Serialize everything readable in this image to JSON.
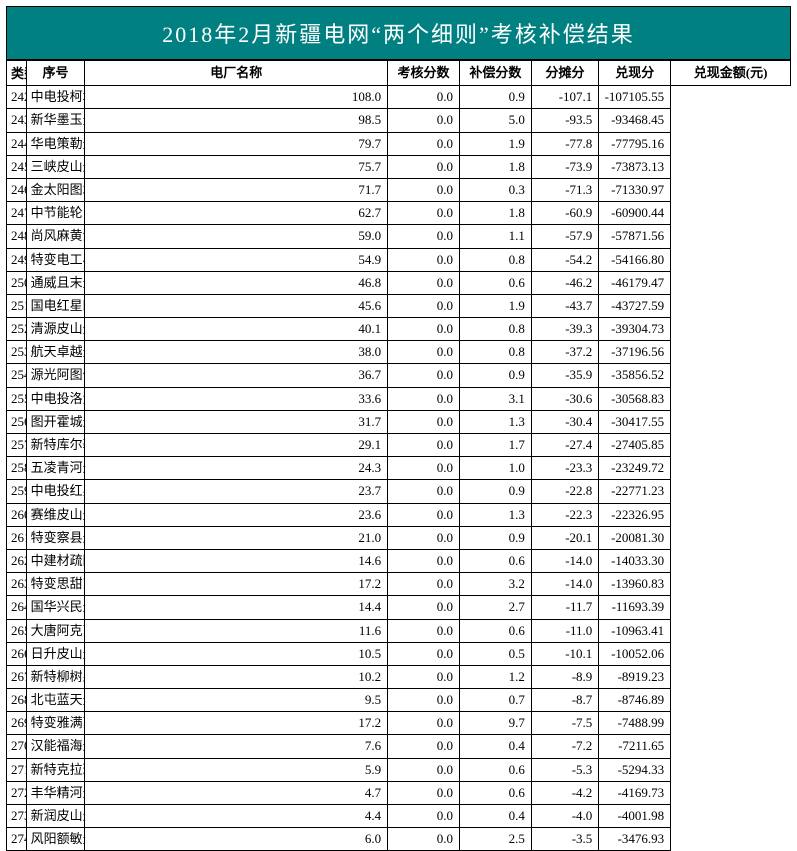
{
  "title": "2018年2月新疆电网“两个细则”考核补偿结果",
  "type_label": "类型",
  "columns": {
    "seq": "序号",
    "name": "电厂名称",
    "kaohe": "考核分数",
    "buchang": "补偿分数",
    "fentan": "分摊分",
    "duixian": "兑现分",
    "amount": "兑现金额(元)"
  },
  "rows": [
    {
      "seq": "242",
      "name": "中电投柯坪光伏三电站",
      "k": "108.0",
      "b": "0.0",
      "f": "0.9",
      "d": "-107.1",
      "a": "-107105.55"
    },
    {
      "seq": "243",
      "name": "新华墨玉光伏二电站",
      "k": "98.5",
      "b": "0.0",
      "f": "5.0",
      "d": "-93.5",
      "a": "-93468.45"
    },
    {
      "seq": "244",
      "name": "华电策勒光伏电站",
      "k": "79.7",
      "b": "0.0",
      "f": "1.9",
      "d": "-77.8",
      "a": "-77795.16"
    },
    {
      "seq": "245",
      "name": "三峡皮山光伏电站",
      "k": "75.7",
      "b": "0.0",
      "f": "1.8",
      "d": "-73.9",
      "a": "-73873.13"
    },
    {
      "seq": "246",
      "name": "金太阳图木舒克光伏一电站",
      "k": "71.7",
      "b": "0.0",
      "f": "0.3",
      "d": "-71.3",
      "a": "-71330.97"
    },
    {
      "seq": "247",
      "name": "中节能轮台光伏一电站",
      "k": "62.7",
      "b": "0.0",
      "f": "1.8",
      "d": "-60.9",
      "a": "-60900.44"
    },
    {
      "seq": "248",
      "name": "尚风麻黄沟西光伏一电站",
      "k": "59.0",
      "b": "0.0",
      "f": "1.1",
      "d": "-57.9",
      "a": "-57871.56"
    },
    {
      "seq": "249",
      "name": "特变电工小草湖光伏二电站",
      "k": "54.9",
      "b": "0.0",
      "f": "0.8",
      "d": "-54.2",
      "a": "-54166.80"
    },
    {
      "seq": "250",
      "name": "通威且末光伏一电站",
      "k": "46.8",
      "b": "0.0",
      "f": "0.6",
      "d": "-46.2",
      "a": "-46179.47"
    },
    {
      "seq": "251",
      "name": "国电红星四场光伏一电站",
      "k": "45.6",
      "b": "0.0",
      "f": "1.9",
      "d": "-43.7",
      "a": "-43727.59"
    },
    {
      "seq": "252",
      "name": "清源皮山光伏一电站",
      "k": "40.1",
      "b": "0.0",
      "f": "0.8",
      "d": "-39.3",
      "a": "-39304.73"
    },
    {
      "seq": "253",
      "name": "航天卓越光伏一电站",
      "k": "38.0",
      "b": "0.0",
      "f": "0.8",
      "d": "-37.2",
      "a": "-37196.56"
    },
    {
      "seq": "254",
      "name": "源光阿图什光伏一电站",
      "k": "36.7",
      "b": "0.0",
      "f": "0.9",
      "d": "-35.9",
      "a": "-35856.52"
    },
    {
      "seq": "255",
      "name": "中电投洛浦光伏一电站",
      "k": "33.6",
      "b": "0.0",
      "f": "3.1",
      "d": "-30.6",
      "a": "-30568.83"
    },
    {
      "seq": "256",
      "name": "图开霍城光伏一电站",
      "k": "31.7",
      "b": "0.0",
      "f": "1.3",
      "d": "-30.4",
      "a": "-30417.55"
    },
    {
      "seq": "257",
      "name": "新特库尔勒光伏一电站",
      "k": "29.1",
      "b": "0.0",
      "f": "1.7",
      "d": "-27.4",
      "a": "-27405.85"
    },
    {
      "seq": "258",
      "name": "五凌青河光伏一电站",
      "k": "24.3",
      "b": "0.0",
      "f": "1.0",
      "d": "-23.3",
      "a": "-23249.72"
    },
    {
      "seq": "259",
      "name": "中电投红星二场光伏一电站",
      "k": "23.7",
      "b": "0.0",
      "f": "0.9",
      "d": "-22.8",
      "a": "-22771.23"
    },
    {
      "seq": "260",
      "name": "赛维皮山光伏一电站",
      "k": "23.6",
      "b": "0.0",
      "f": "1.3",
      "d": "-22.3",
      "a": "-22326.95"
    },
    {
      "seq": "261",
      "name": "特变察县光伏一电站",
      "k": "21.0",
      "b": "0.0",
      "f": "0.9",
      "d": "-20.1",
      "a": "-20081.30"
    },
    {
      "seq": "262",
      "name": "中建材疏附光伏一电站",
      "k": "14.6",
      "b": "0.0",
      "f": "0.6",
      "d": "-14.0",
      "a": "-14033.30"
    },
    {
      "seq": "263",
      "name": "特变思甜东光伏一电站",
      "k": "17.2",
      "b": "0.0",
      "f": "3.2",
      "d": "-14.0",
      "a": "-13960.83"
    },
    {
      "seq": "264",
      "name": "国华兴民光伏一电站",
      "k": "14.4",
      "b": "0.0",
      "f": "2.7",
      "d": "-11.7",
      "a": "-11693.39"
    },
    {
      "seq": "265",
      "name": "大唐阿克苏光伏一电站",
      "k": "11.6",
      "b": "0.0",
      "f": "0.6",
      "d": "-11.0",
      "a": "-10963.41"
    },
    {
      "seq": "266",
      "name": "日升皮山光伏一电站",
      "k": "10.5",
      "b": "0.0",
      "f": "0.5",
      "d": "-10.1",
      "a": "-10052.06"
    },
    {
      "seq": "267",
      "name": "新特柳树泉光伏一电站",
      "k": "10.2",
      "b": "0.0",
      "f": "1.2",
      "d": "-8.9",
      "a": "-8919.23"
    },
    {
      "seq": "268",
      "name": "北屯蓝天光伏一期",
      "k": "9.5",
      "b": "0.0",
      "f": "0.7",
      "d": "-8.7",
      "a": "-8746.89"
    },
    {
      "seq": "269",
      "name": "特变雅满苏光伏一电站",
      "k": "17.2",
      "b": "0.0",
      "f": "9.7",
      "d": "-7.5",
      "a": "-7488.99"
    },
    {
      "seq": "270",
      "name": "汉能福海光伏一电站",
      "k": "7.6",
      "b": "0.0",
      "f": "0.4",
      "d": "-7.2",
      "a": "-7211.65"
    },
    {
      "seq": "271",
      "name": "新特克拉玛依光伏一电站",
      "k": "5.9",
      "b": "0.0",
      "f": "0.6",
      "d": "-5.3",
      "a": "-5294.33"
    },
    {
      "seq": "272",
      "name": "丰华精河光伏一电站",
      "k": "4.7",
      "b": "0.0",
      "f": "0.6",
      "d": "-4.2",
      "a": "-4169.73"
    },
    {
      "seq": "273",
      "name": "新润皮山光伏一电站",
      "k": "4.4",
      "b": "0.0",
      "f": "0.4",
      "d": "-4.0",
      "a": "-4001.98"
    },
    {
      "seq": "274",
      "name": "风阳额敏光伏一电站",
      "k": "6.0",
      "b": "0.0",
      "f": "2.5",
      "d": "-3.5",
      "a": "-3476.93"
    }
  ],
  "style": {
    "title_bg": "#008080",
    "title_color": "#ffffff",
    "border_color": "#000000",
    "row_bg": "#ffffff"
  }
}
